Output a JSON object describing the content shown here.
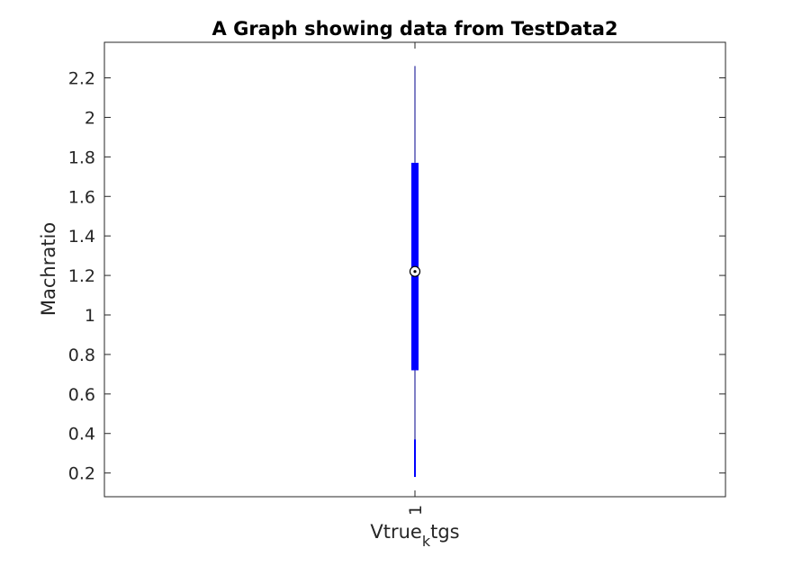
{
  "chart_data": {
    "type": "boxplot",
    "title": "A Graph showing data from TestData2",
    "ylabel": "Machratio",
    "xlabel": {
      "main": "Vtrue",
      "subscript": "k",
      "suffix": "tgs"
    },
    "categories": [
      "1"
    ],
    "ylim": [
      0.08,
      2.38
    ],
    "yticks": [
      0.2,
      0.4,
      0.6,
      0.8,
      1,
      1.2,
      1.4,
      1.6,
      1.8,
      2,
      2.2
    ],
    "ytick_labels": [
      "0.2",
      "0.4",
      "0.6",
      "0.8",
      "1",
      "1.2",
      "1.4",
      "1.6",
      "1.8",
      "2",
      "2.2"
    ],
    "boxes": [
      {
        "category": "1",
        "whisker_low": 0.18,
        "q1": 0.72,
        "median": 1.22,
        "q3": 1.77,
        "whisker_high": 2.26,
        "lower_segment_end": 0.37
      }
    ],
    "grid": false,
    "legend": false,
    "colors": {
      "box": "#0000ff",
      "whisker": "#00008b",
      "axes": "#262626",
      "text": "#262626",
      "title": "#000000"
    }
  }
}
